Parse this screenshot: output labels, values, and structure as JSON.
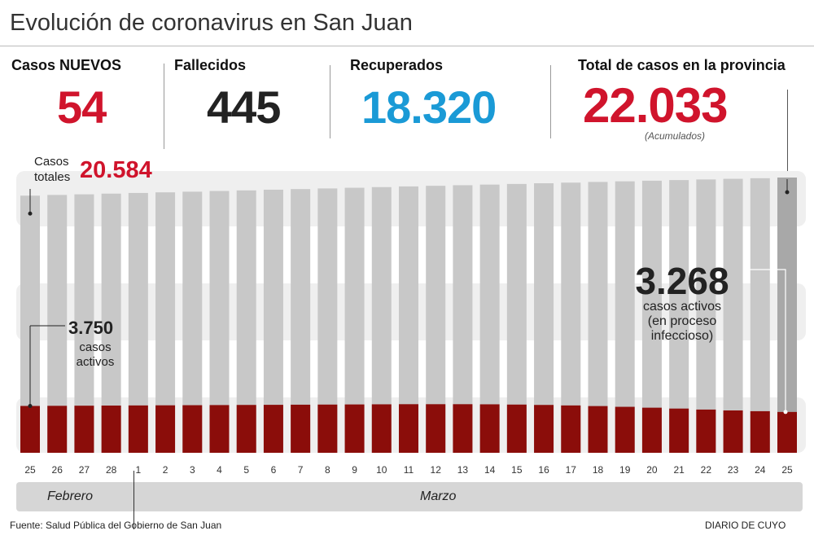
{
  "title": "Evolución de coronavirus en San Juan",
  "stats": {
    "nuevos": {
      "label": "Casos NUEVOS",
      "value": "54",
      "color": "#d0142c"
    },
    "fallecidos": {
      "label": "Fallecidos",
      "value": "445",
      "color": "#222222"
    },
    "recuperados": {
      "label": "Recuperados",
      "value": "18.320",
      "color": "#1a9ad6"
    },
    "total": {
      "label": "Total de casos en la provincia",
      "value": "22.033",
      "note": "(Acumulados)",
      "color": "#d0142c"
    }
  },
  "annotations": {
    "totales_label_1": "Casos",
    "totales_label_2": "totales",
    "totales_value": "20.584",
    "first_active_value": "3.750",
    "first_active_label_1": "casos",
    "first_active_label_2": "activos",
    "last_active_value": "3.268",
    "last_active_label_1": "casos activos",
    "last_active_label_2": "(en proceso",
    "last_active_label_3": "infeccioso)"
  },
  "months": {
    "feb": "Febrero",
    "mar": "Marzo"
  },
  "footer": {
    "source": "Fuente: Salud Pública del Gobierno de San Juan",
    "brand": "DIARIO DE CUYO"
  },
  "chart_data": {
    "type": "bar",
    "categories": [
      "25",
      "26",
      "27",
      "28",
      "1",
      "2",
      "3",
      "4",
      "5",
      "6",
      "7",
      "8",
      "9",
      "10",
      "11",
      "12",
      "13",
      "14",
      "15",
      "16",
      "17",
      "18",
      "19",
      "20",
      "21",
      "22",
      "23",
      "24",
      "25"
    ],
    "series": [
      {
        "name": "Casos totales",
        "color": "#c8c8c8",
        "values": [
          20584,
          20640,
          20690,
          20745,
          20800,
          20850,
          20900,
          20955,
          21005,
          21060,
          21110,
          21160,
          21215,
          21265,
          21320,
          21370,
          21420,
          21470,
          21520,
          21575,
          21625,
          21680,
          21730,
          21780,
          21830,
          21880,
          21930,
          21979,
          22033
        ]
      },
      {
        "name": "casos activos",
        "color": "#8b0d0a",
        "values": [
          3750,
          3760,
          3770,
          3780,
          3790,
          3800,
          3810,
          3820,
          3830,
          3840,
          3850,
          3860,
          3870,
          3880,
          3890,
          3890,
          3890,
          3880,
          3860,
          3830,
          3790,
          3740,
          3680,
          3610,
          3540,
          3460,
          3390,
          3330,
          3268
        ]
      }
    ],
    "highlight_color": "#a8a8a8",
    "ylim": [
      0,
      22033
    ]
  }
}
